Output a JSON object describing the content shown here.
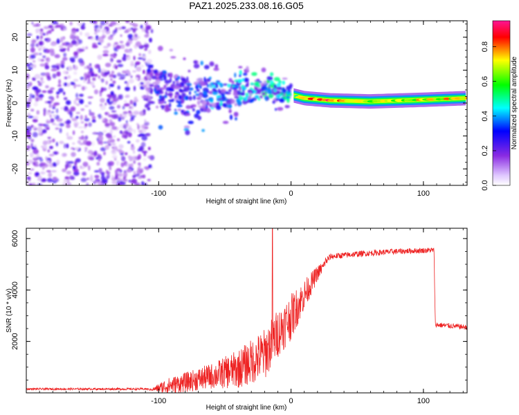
{
  "figure_title": "PAZ1.2025.233.08.16.G05",
  "chart_data": [
    {
      "type": "heatmap",
      "name": "spectrogram",
      "xlabel": "Height of straight line (km)",
      "ylabel": "Frequency (Hz)",
      "xlim": [
        -200,
        133
      ],
      "ylim": [
        -25,
        25
      ],
      "xticks": [
        -100,
        0,
        100
      ],
      "yticks": [
        -20,
        -10,
        0,
        10,
        20
      ],
      "xtick_labels": [
        "-100",
        "0",
        "100"
      ],
      "ytick_labels": [
        "-20",
        "-10",
        "0",
        "10",
        "20"
      ],
      "colorbar": {
        "label": "Normalized spectral amplitude",
        "range": [
          0,
          0.95
        ],
        "ticks": [
          0,
          0.2,
          0.4,
          0.6,
          0.8
        ],
        "tick_labels": [
          "0.0",
          "0.2",
          "0.4",
          "0.6",
          "0.8"
        ],
        "colormap": [
          "#ffffff",
          "#8a2be2",
          "#0000ff",
          "#00ffff",
          "#00ff00",
          "#ffff00",
          "#ff0000",
          "#ff1493"
        ]
      },
      "ridge": [
        {
          "x": -110,
          "freq": 5,
          "amp": 0.3
        },
        {
          "x": -80,
          "freq": 2,
          "amp": 0.3
        },
        {
          "x": -50,
          "freq": 3,
          "amp": 0.3
        },
        {
          "x": -20,
          "freq": 4,
          "amp": 0.35
        },
        {
          "x": 0,
          "freq": 2.5,
          "amp": 0.5
        },
        {
          "x": 10,
          "freq": 1.5,
          "amp": 0.8
        },
        {
          "x": 30,
          "freq": 0.8,
          "amp": 0.95
        },
        {
          "x": 60,
          "freq": 0.5,
          "amp": 0.7
        },
        {
          "x": 100,
          "freq": 1.0,
          "amp": 0.75
        },
        {
          "x": 133,
          "freq": 1.5,
          "amp": 0.8
        }
      ]
    },
    {
      "type": "line",
      "name": "snr",
      "xlabel": "Height of straight line (km)",
      "ylabel": "SNR (10 * v/v)",
      "xlim": [
        -200,
        133
      ],
      "ylim": [
        0,
        6400
      ],
      "xticks": [
        -100,
        0,
        100
      ],
      "yticks": [
        2000,
        4000,
        6000
      ],
      "xtick_labels": [
        "-100",
        "0",
        "100"
      ],
      "ytick_labels": [
        "2000",
        "4000",
        "6000"
      ],
      "color": "#ee2222",
      "envelope": [
        {
          "x": -200,
          "y": 150
        },
        {
          "x": -105,
          "y": 150
        },
        {
          "x": -95,
          "y": 400
        },
        {
          "x": -80,
          "y": 600
        },
        {
          "x": -60,
          "y": 900
        },
        {
          "x": -40,
          "y": 1300
        },
        {
          "x": -20,
          "y": 2000
        },
        {
          "x": -10,
          "y": 2800
        },
        {
          "x": 0,
          "y": 3400
        },
        {
          "x": 10,
          "y": 4100
        },
        {
          "x": 20,
          "y": 4800
        },
        {
          "x": 30,
          "y": 5300
        },
        {
          "x": 50,
          "y": 5400
        },
        {
          "x": 80,
          "y": 5500
        },
        {
          "x": 108,
          "y": 5550
        },
        {
          "x": 109,
          "y": 2650
        },
        {
          "x": 133,
          "y": 2550
        }
      ],
      "noise": [
        {
          "x": -200,
          "amp": 40
        },
        {
          "x": -105,
          "amp": 40
        },
        {
          "x": -95,
          "amp": 300
        },
        {
          "x": -60,
          "amp": 500
        },
        {
          "x": -20,
          "amp": 1000
        },
        {
          "x": 0,
          "amp": 900
        },
        {
          "x": 20,
          "amp": 300
        },
        {
          "x": 30,
          "amp": 120
        },
        {
          "x": 133,
          "amp": 100
        }
      ],
      "spike": {
        "x": -14,
        "y": 6400
      }
    }
  ]
}
